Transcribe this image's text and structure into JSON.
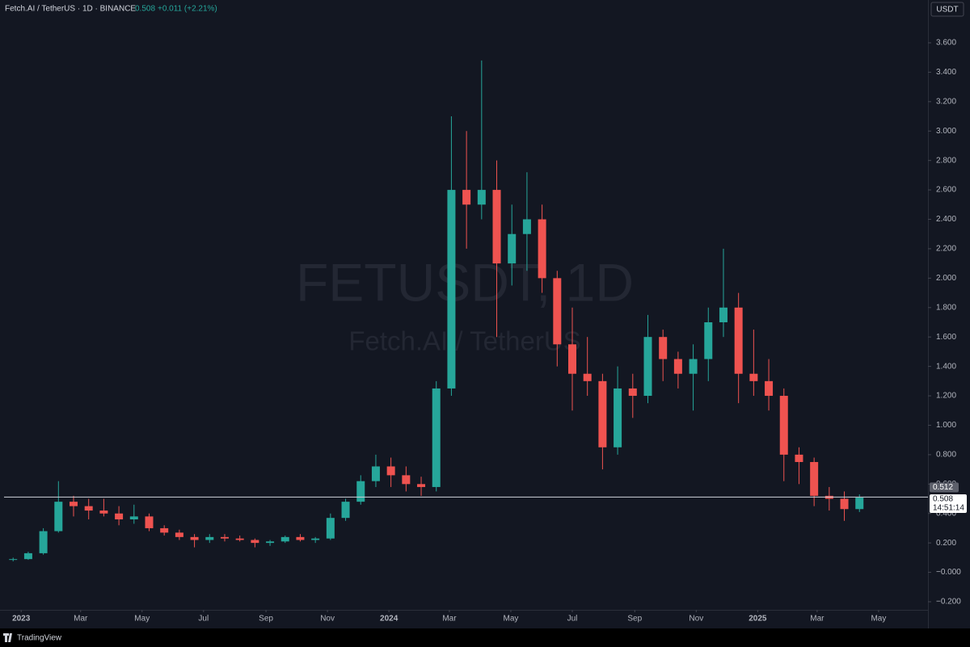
{
  "chart_data": {
    "type": "candlestick",
    "title": "Fetch.AI / TetherUS · 1D · BINANCE",
    "last_price": 0.508,
    "change": "+0.011 (+2.21%)",
    "watermark": "FETUSDT, 1D",
    "watermark_subtitle": "Fetch.AI / TetherUS",
    "currency": "USDT",
    "countdown": "14:51:14",
    "price_line": 0.512,
    "up_color": "#26a69a",
    "down_color": "#ef5350",
    "x": [
      -8,
      7,
      22,
      37,
      52,
      67,
      82,
      97,
      112,
      127,
      142,
      157,
      172,
      187,
      202,
      217,
      232,
      247,
      262,
      277,
      292,
      307,
      322,
      337,
      352,
      367,
      382,
      397,
      412,
      427,
      442,
      457,
      472,
      487,
      502,
      517,
      532,
      547,
      562,
      577,
      592,
      607,
      622,
      637,
      652,
      667,
      682,
      697,
      712,
      727,
      742,
      757,
      772,
      787,
      802,
      817,
      832
    ],
    "open": [
      0.085,
      0.09,
      0.13,
      0.28,
      0.48,
      0.45,
      0.42,
      0.4,
      0.36,
      0.38,
      0.3,
      0.27,
      0.24,
      0.22,
      0.24,
      0.23,
      0.22,
      0.2,
      0.21,
      0.24,
      0.22,
      0.23,
      0.37,
      0.48,
      0.62,
      0.72,
      0.66,
      0.6,
      0.58,
      1.25,
      2.6,
      2.5,
      2.6,
      2.1,
      2.3,
      2.4,
      2.0,
      1.55,
      1.35,
      1.3,
      0.85,
      1.25,
      1.2,
      1.6,
      1.45,
      1.35,
      1.45,
      1.7,
      1.8,
      1.35,
      1.3,
      1.2,
      0.8,
      0.75,
      0.52,
      0.5,
      0.43
    ],
    "high": [
      0.1,
      0.14,
      0.3,
      0.62,
      0.52,
      0.5,
      0.5,
      0.45,
      0.46,
      0.4,
      0.32,
      0.29,
      0.26,
      0.26,
      0.26,
      0.25,
      0.23,
      0.22,
      0.25,
      0.26,
      0.24,
      0.4,
      0.5,
      0.66,
      0.8,
      0.78,
      0.72,
      0.65,
      1.3,
      3.1,
      3.0,
      3.48,
      2.8,
      2.5,
      2.72,
      2.5,
      2.05,
      1.8,
      1.6,
      1.35,
      1.4,
      1.35,
      1.75,
      1.65,
      1.5,
      1.55,
      1.8,
      2.2,
      1.9,
      1.65,
      1.45,
      1.25,
      0.85,
      0.78,
      0.58,
      0.55,
      0.53
    ],
    "low": [
      0.075,
      0.085,
      0.12,
      0.27,
      0.38,
      0.36,
      0.38,
      0.32,
      0.33,
      0.28,
      0.25,
      0.22,
      0.17,
      0.2,
      0.21,
      0.21,
      0.17,
      0.18,
      0.2,
      0.21,
      0.2,
      0.22,
      0.35,
      0.46,
      0.58,
      0.58,
      0.55,
      0.52,
      0.55,
      1.2,
      2.2,
      2.4,
      1.6,
      1.95,
      2.05,
      1.9,
      1.4,
      1.1,
      1.2,
      0.7,
      0.8,
      1.05,
      1.15,
      1.3,
      1.25,
      1.1,
      1.3,
      1.6,
      1.15,
      1.2,
      1.1,
      0.62,
      0.6,
      0.45,
      0.42,
      0.35,
      0.41
    ],
    "close": [
      0.09,
      0.13,
      0.28,
      0.48,
      0.45,
      0.42,
      0.4,
      0.36,
      0.38,
      0.3,
      0.27,
      0.24,
      0.22,
      0.24,
      0.23,
      0.22,
      0.2,
      0.21,
      0.24,
      0.22,
      0.23,
      0.37,
      0.48,
      0.62,
      0.72,
      0.66,
      0.6,
      0.58,
      1.25,
      2.6,
      2.5,
      2.6,
      2.1,
      2.3,
      2.4,
      2.0,
      1.55,
      1.35,
      1.3,
      0.85,
      1.25,
      1.2,
      1.6,
      1.45,
      1.35,
      1.45,
      1.7,
      1.8,
      1.35,
      1.3,
      1.2,
      0.8,
      0.75,
      0.52,
      0.5,
      0.43,
      0.508
    ],
    "xlim": [
      -17,
      900
    ],
    "xticks": [
      {
        "value": 0,
        "label": "2023"
      },
      {
        "value": 59,
        "label": "Mar"
      },
      {
        "value": 120,
        "label": "May"
      },
      {
        "value": 181,
        "label": "Jul"
      },
      {
        "value": 243,
        "label": "Sep"
      },
      {
        "value": 304,
        "label": "Nov"
      },
      {
        "value": 365,
        "label": "2024"
      },
      {
        "value": 425,
        "label": "Mar"
      },
      {
        "value": 486,
        "label": "May"
      },
      {
        "value": 547,
        "label": "Jul"
      },
      {
        "value": 609,
        "label": "Sep"
      },
      {
        "value": 670,
        "label": "Nov"
      },
      {
        "value": 731,
        "label": "2025"
      },
      {
        "value": 790,
        "label": "Mar"
      },
      {
        "value": 851,
        "label": "May"
      }
    ],
    "ylim": [
      -0.255,
      3.891
    ],
    "yticks": [
      {
        "value": -0.2,
        "label": "−0.200"
      },
      {
        "value": 0,
        "label": "−0.000"
      },
      {
        "value": 0.2,
        "label": "0.200"
      },
      {
        "value": 0.4,
        "label": "0.400"
      },
      {
        "value": 0.6,
        "label": "0.600"
      },
      {
        "value": 0.8,
        "label": "0.800"
      },
      {
        "value": 1,
        "label": "1.000"
      },
      {
        "value": 1.2,
        "label": "1.200"
      },
      {
        "value": 1.4,
        "label": "1.400"
      },
      {
        "value": 1.6,
        "label": "1.600"
      },
      {
        "value": 1.8,
        "label": "1.800"
      },
      {
        "value": 2,
        "label": "2.000"
      },
      {
        "value": 2.2,
        "label": "2.200"
      },
      {
        "value": 2.4,
        "label": "2.400"
      },
      {
        "value": 2.6,
        "label": "2.600"
      },
      {
        "value": 2.8,
        "label": "2.800"
      },
      {
        "value": 3,
        "label": "3.000"
      },
      {
        "value": 3.2,
        "label": "3.200"
      },
      {
        "value": 3.4,
        "label": "3.400"
      },
      {
        "value": 3.6,
        "label": "3.600"
      }
    ]
  },
  "footer": {
    "brand": "TradingView"
  }
}
